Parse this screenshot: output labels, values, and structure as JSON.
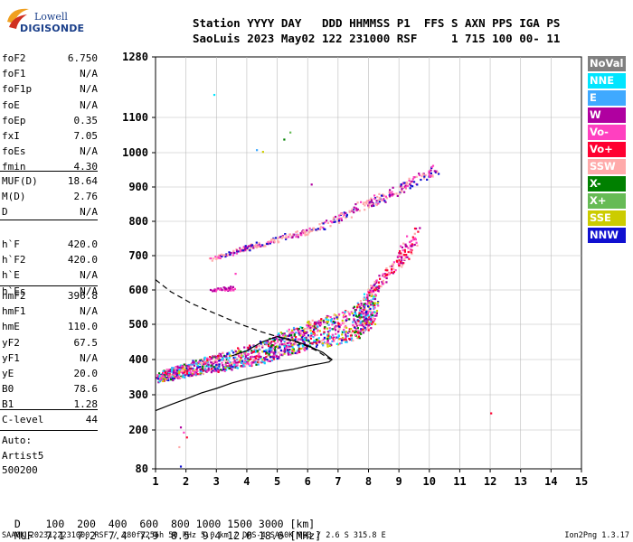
{
  "logo": {
    "line1": "Lowell",
    "line2": "DIGISONDE"
  },
  "header": {
    "line1": "Station YYYY DAY   DDD HHMMSS P1  FFS S AXN PPS IGA PS",
    "line2": "SaoLuis 2023 May02 122 231000 RSF     1 715 100 00- 11"
  },
  "params_1": [
    {
      "k": "foF2",
      "v": "6.750"
    },
    {
      "k": "foF1",
      "v": "N/A"
    },
    {
      "k": "foF1p",
      "v": "N/A"
    },
    {
      "k": "foE",
      "v": "N/A"
    },
    {
      "k": "foEp",
      "v": "0.35"
    },
    {
      "k": "fxI",
      "v": "7.05"
    },
    {
      "k": "foEs",
      "v": "N/A"
    },
    {
      "k": "fmin",
      "v": "4.30"
    }
  ],
  "params_2": [
    {
      "k": "MUF(D)",
      "v": "18.64"
    },
    {
      "k": "M(D)",
      "v": "2.76"
    },
    {
      "k": "D",
      "v": "N/A"
    }
  ],
  "params_3": [
    {
      "k": "h`F",
      "v": "420.0"
    },
    {
      "k": "h`F2",
      "v": "420.0"
    },
    {
      "k": "h`E",
      "v": "N/A"
    },
    {
      "k": "h`Es",
      "v": "N/A"
    }
  ],
  "params_4": [
    {
      "k": "hmF2",
      "v": "396.8"
    },
    {
      "k": "hmF1",
      "v": "N/A"
    },
    {
      "k": "hmE",
      "v": "110.0"
    },
    {
      "k": "yF2",
      "v": "67.5"
    },
    {
      "k": "yF1",
      "v": "N/A"
    },
    {
      "k": "yE",
      "v": "20.0"
    },
    {
      "k": "B0",
      "v": "78.6"
    },
    {
      "k": "B1",
      "v": "1.28"
    }
  ],
  "clevel": {
    "k": "C-level",
    "v": "44"
  },
  "auto": [
    "Auto:",
    "Artist5",
    "500200"
  ],
  "legend": [
    {
      "label": "NoVal",
      "color": "#808080"
    },
    {
      "label": "NNE",
      "color": "#00e5ff"
    },
    {
      "label": "E",
      "color": "#3fa9ff"
    },
    {
      "label": "W",
      "color": "#b000a0"
    },
    {
      "label": "Vo-",
      "color": "#ff40c0"
    },
    {
      "label": "Vo+",
      "color": "#ff0030"
    },
    {
      "label": "SSW",
      "color": "#ffaaaa"
    },
    {
      "label": "X-",
      "color": "#008000"
    },
    {
      "label": "X+",
      "color": "#66bb55"
    },
    {
      "label": "SSE",
      "color": "#cccc00"
    },
    {
      "label": "NNW",
      "color": "#1010d0"
    }
  ],
  "dmuf": {
    "d_label": "D",
    "d_values": "100  200  400  600  800 1000 1500 3000 [km]",
    "muf_label": "MUF",
    "muf_values": "7.1  7.2  7.4  7.9  8.5  9.4 12.0 18.6 [MHz]"
  },
  "footer": {
    "left": "SAA0K_2023122231000.RSF / 280fx256h 50 kHz 5.0 km / DPS-4 SAA0K 903 / 2.6 S 315.8 E",
    "right": "Ion2Png 1.3.17"
  },
  "chart_data": {
    "type": "scatter",
    "x_ticks": [
      "1",
      "2",
      "3",
      "4",
      "5",
      "6",
      "7",
      "8",
      "9",
      "10",
      "11",
      "12",
      "13",
      "14",
      "15"
    ],
    "y_ticks": [
      {
        "label": "80",
        "value": 80
      },
      {
        "label": "200",
        "value": 200
      },
      {
        "label": "300",
        "value": 300
      },
      {
        "label": "400",
        "value": 400
      },
      {
        "label": "500",
        "value": 500
      },
      {
        "label": "600",
        "value": 600
      },
      {
        "label": "700",
        "value": 700
      },
      {
        "label": "800",
        "value": 800
      },
      {
        "label": "900",
        "value": 900
      },
      {
        "label": "1000",
        "value": 1000
      },
      {
        "label": "1100",
        "value": 1100
      },
      {
        "label": "1280",
        "value": 1280
      }
    ],
    "xlim": [
      1,
      15
    ],
    "ylim": [
      80,
      1280
    ],
    "grid": true,
    "dashed_profile": {
      "x": [
        1.0,
        1.5,
        2.2,
        3.0,
        3.8,
        4.5,
        5.2,
        5.8,
        6.3,
        6.75
      ],
      "y": [
        630,
        595,
        560,
        530,
        500,
        478,
        460,
        445,
        425,
        400
      ]
    },
    "solid_profile": {
      "x": [
        1.0,
        1.5,
        2.0,
        2.5,
        3.0,
        3.5,
        4.0,
        4.5,
        5.0,
        5.5,
        6.0,
        6.4,
        6.7,
        6.8,
        6.5,
        6.0,
        5.5,
        5.0,
        4.5,
        4.0,
        3.5
      ],
      "y": [
        255,
        272,
        288,
        305,
        318,
        333,
        345,
        355,
        365,
        372,
        382,
        388,
        393,
        400,
        420,
        440,
        455,
        465,
        450,
        425,
        410
      ]
    },
    "o_trace": {
      "x": [
        1.1,
        1.5,
        2.0,
        2.5,
        3.0,
        3.5,
        4.0,
        4.5,
        5.0,
        5.5,
        6.0,
        6.5,
        7.0,
        7.5,
        7.8,
        8.0,
        8.2
      ],
      "y": [
        350,
        362,
        372,
        382,
        392,
        402,
        412,
        422,
        440,
        455,
        470,
        480,
        490,
        505,
        525,
        545,
        570
      ]
    },
    "x_trace": {
      "x": [
        8.0,
        8.3,
        8.6,
        9.0,
        9.3,
        9.6
      ],
      "y": [
        590,
        620,
        650,
        690,
        730,
        770
      ]
    },
    "second_hop": {
      "x": [
        2.7,
        3.5,
        4.2,
        5.0,
        5.8,
        6.5,
        7.2,
        7.8,
        8.4,
        9.0,
        9.6,
        10.2
      ],
      "y": [
        690,
        710,
        730,
        750,
        770,
        790,
        820,
        850,
        870,
        895,
        925,
        955
      ]
    },
    "second_hop_low": {
      "x": [
        2.8,
        3.0,
        3.2,
        3.4,
        3.6
      ],
      "y": [
        600,
        602,
        605,
        607,
        610
      ]
    },
    "sparse_points": {
      "x": [
        1.8,
        1.9,
        2.0,
        1.75,
        1.8,
        2.9,
        4.3,
        4.5,
        5.2,
        5.4,
        6.1,
        3.6,
        12.0
      ],
      "y": [
        210,
        195,
        180,
        150,
        90,
        1170,
        1010,
        1005,
        1040,
        1060,
        910,
        650,
        250
      ]
    }
  }
}
